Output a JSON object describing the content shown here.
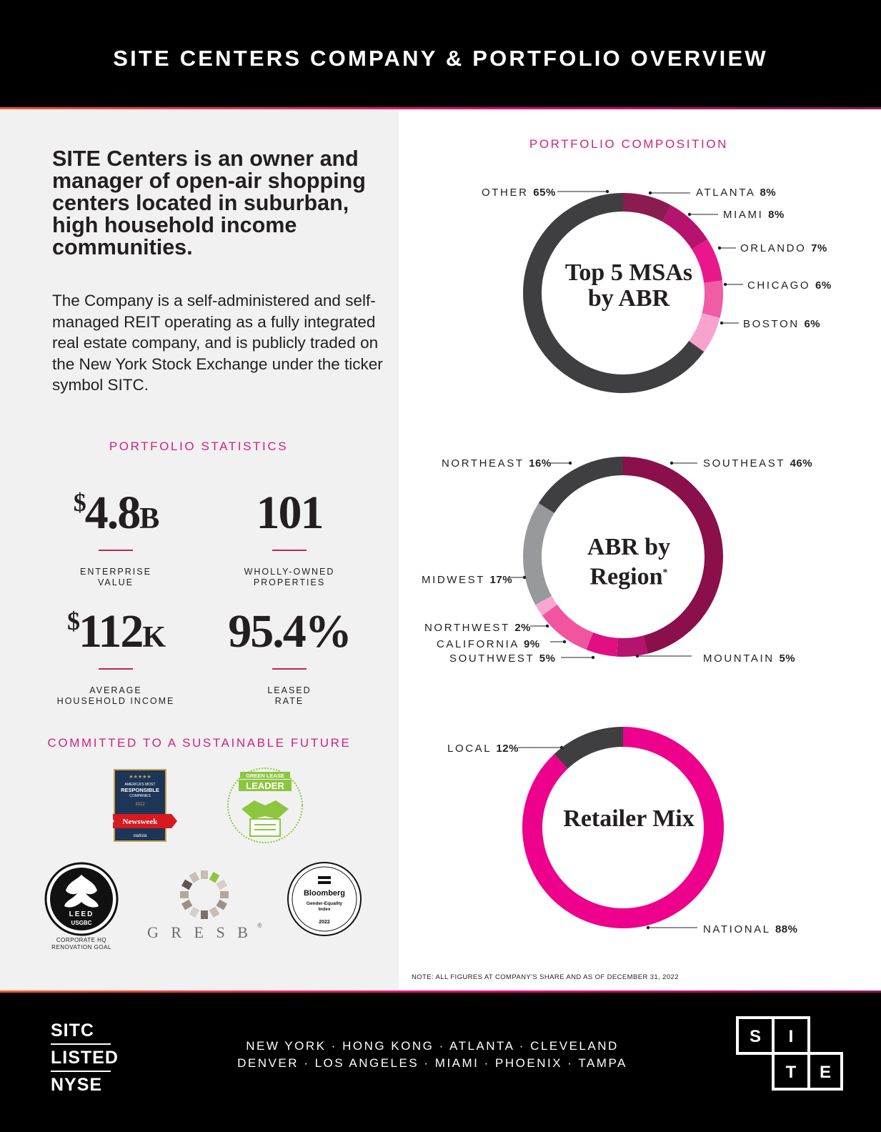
{
  "header": {
    "title": "SITE CENTERS COMPANY & PORTFOLIO OVERVIEW"
  },
  "intro": {
    "headline": "SITE Centers is an owner and manager of open-air shopping centers located in suburban, high household income communities.",
    "body": "The Company is a self-administered and self-managed REIT operating as a fully integrated real estate company, and is publicly traded on the New York Stock Exchange under the ticker symbol SITC."
  },
  "portfolio_statistics": {
    "title": "PORTFOLIO STATISTICS",
    "items": [
      {
        "prefix": "$",
        "value": "4.8",
        "suffix": "B",
        "label_line1": "ENTERPRISE",
        "label_line2": "VALUE"
      },
      {
        "prefix": "",
        "value": "101",
        "suffix": "",
        "label_line1": "WHOLLY-OWNED",
        "label_line2": "PROPERTIES"
      },
      {
        "prefix": "$",
        "value": "112",
        "suffix": "K",
        "label_line1": "AVERAGE",
        "label_line2": "HOUSEHOLD INCOME"
      },
      {
        "prefix": "",
        "value": "95.4%",
        "suffix": "",
        "label_line1": "LEASED",
        "label_line2": "RATE"
      }
    ]
  },
  "sustainability": {
    "title": "COMMITTED TO A SUSTAINABLE FUTURE",
    "newsweek": {
      "line1": "AMERICA'S MOST",
      "line2": "RESPONSIBLE",
      "line3": "COMPANIES",
      "year": "2022",
      "ribbon": "Newsweek",
      "partner": "statista"
    },
    "green_lease": {
      "line1": "GREEN LEASE",
      "line2": "LEADER"
    },
    "leed": {
      "text1": "LEED",
      "text2": "USGBC",
      "caption_line1": "CORPORATE HQ",
      "caption_line2": "RENOVATION GOAL"
    },
    "gresb": {
      "text": "G R E S B",
      "mark": "®"
    },
    "bloomberg": {
      "name": "Bloomberg",
      "line1": "Gender-Equality",
      "line2": "Index",
      "year": "2022"
    }
  },
  "portfolio_composition": {
    "title": "PORTFOLIO COMPOSITION"
  },
  "chart_data": [
    {
      "type": "pie",
      "title": "Top 5 MSAs by ABR",
      "categories": [
        "ATLANTA",
        "MIAMI",
        "ORLANDO",
        "CHICAGO",
        "BOSTON",
        "OTHER"
      ],
      "values": [
        8,
        8,
        7,
        6,
        6,
        65
      ],
      "labels": [
        "8%",
        "8%",
        "7%",
        "6%",
        "6%",
        "65%"
      ],
      "colors": [
        "#8a1c4f",
        "#b5136d",
        "#e8188c",
        "#f15ca6",
        "#f7a3cd",
        "#3f3f41"
      ]
    },
    {
      "type": "pie",
      "title": "ABR by Region",
      "title_mark": "*",
      "categories": [
        "SOUTHEAST",
        "MOUNTAIN",
        "SOUTHWEST",
        "CALIFORNIA",
        "NORTHWEST",
        "MIDWEST",
        "NORTHEAST"
      ],
      "values": [
        46,
        5,
        5,
        9,
        2,
        17,
        16
      ],
      "labels": [
        "46%",
        "5%",
        "5%",
        "9%",
        "2%",
        "17%",
        "16%"
      ],
      "colors": [
        "#8a0f4a",
        "#b5136d",
        "#e20f83",
        "#f2559f",
        "#f8a8cf",
        "#98999c",
        "#3f3f41"
      ]
    },
    {
      "type": "pie",
      "title": "Retailer Mix",
      "categories": [
        "NATIONAL",
        "LOCAL"
      ],
      "values": [
        88,
        12
      ],
      "labels": [
        "88%",
        "12%"
      ],
      "colors": [
        "#ec008c",
        "#3f3f41"
      ]
    }
  ],
  "note": "NOTE: ALL FIGURES AT COMPANY'S SHARE AND AS OF DECEMBER 31, 2022",
  "footer": {
    "sitc": [
      "SITC",
      "LISTED",
      "NYSE"
    ],
    "cities_line1": "NEW YORK · HONG KONG · ATLANTA · CLEVELAND",
    "cities_line2": "DENVER · LOS ANGELES · MIAMI · PHOENIX · TAMPA",
    "logo_letters": [
      "S",
      "I",
      "T",
      "E"
    ]
  }
}
